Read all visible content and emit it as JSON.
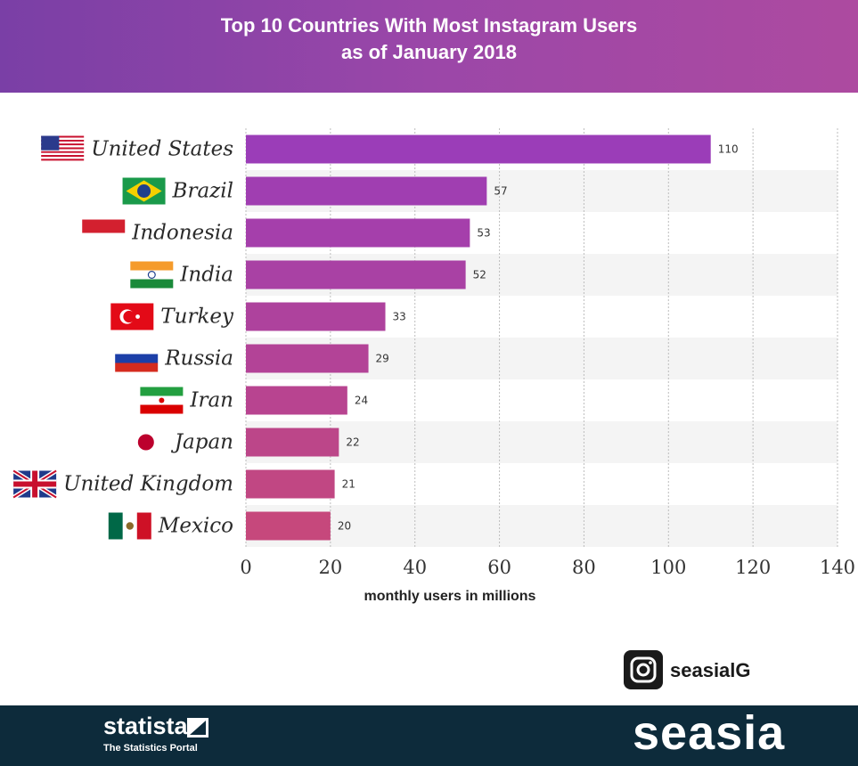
{
  "header": {
    "title_line1": "Top 10 Countries With Most Instagram Users",
    "title_line2": "as of January 2018",
    "gradient_start": "#7a3fa6",
    "gradient_end": "#ad4aa0"
  },
  "chart_data": {
    "type": "bar",
    "orientation": "horizontal",
    "title": "Top 10 Countries With Most Instagram Users as of January 2018",
    "categories": [
      "United States",
      "Brazil",
      "Indonesia",
      "India",
      "Turkey",
      "Russia",
      "Iran",
      "Japan",
      "United Kingdom",
      "Mexico"
    ],
    "values": [
      110,
      57,
      53,
      52,
      33,
      29,
      24,
      22,
      21,
      20
    ],
    "xlabel": "monthly users in millions",
    "ylabel": "",
    "xlim": [
      0,
      140
    ],
    "xticks": [
      0,
      20,
      40,
      60,
      80,
      100,
      120,
      140
    ],
    "grid": "vertical dashed",
    "bar_color_top": "#9b3db8",
    "bar_color_bottom": "#c6487c"
  },
  "flags": [
    "us-flag-icon",
    "brazil-flag-icon",
    "indonesia-flag-icon",
    "india-flag-icon",
    "turkey-flag-icon",
    "russia-flag-icon",
    "iran-flag-icon",
    "japan-flag-icon",
    "uk-flag-icon",
    "mexico-flag-icon"
  ],
  "badge": {
    "icon": "instagram-icon",
    "handle": "seasialG"
  },
  "footer": {
    "statista_name": "statista",
    "statista_tagline": "The Statistics Portal",
    "seasia_logo": "seasia",
    "background": "#0d2b3b"
  }
}
